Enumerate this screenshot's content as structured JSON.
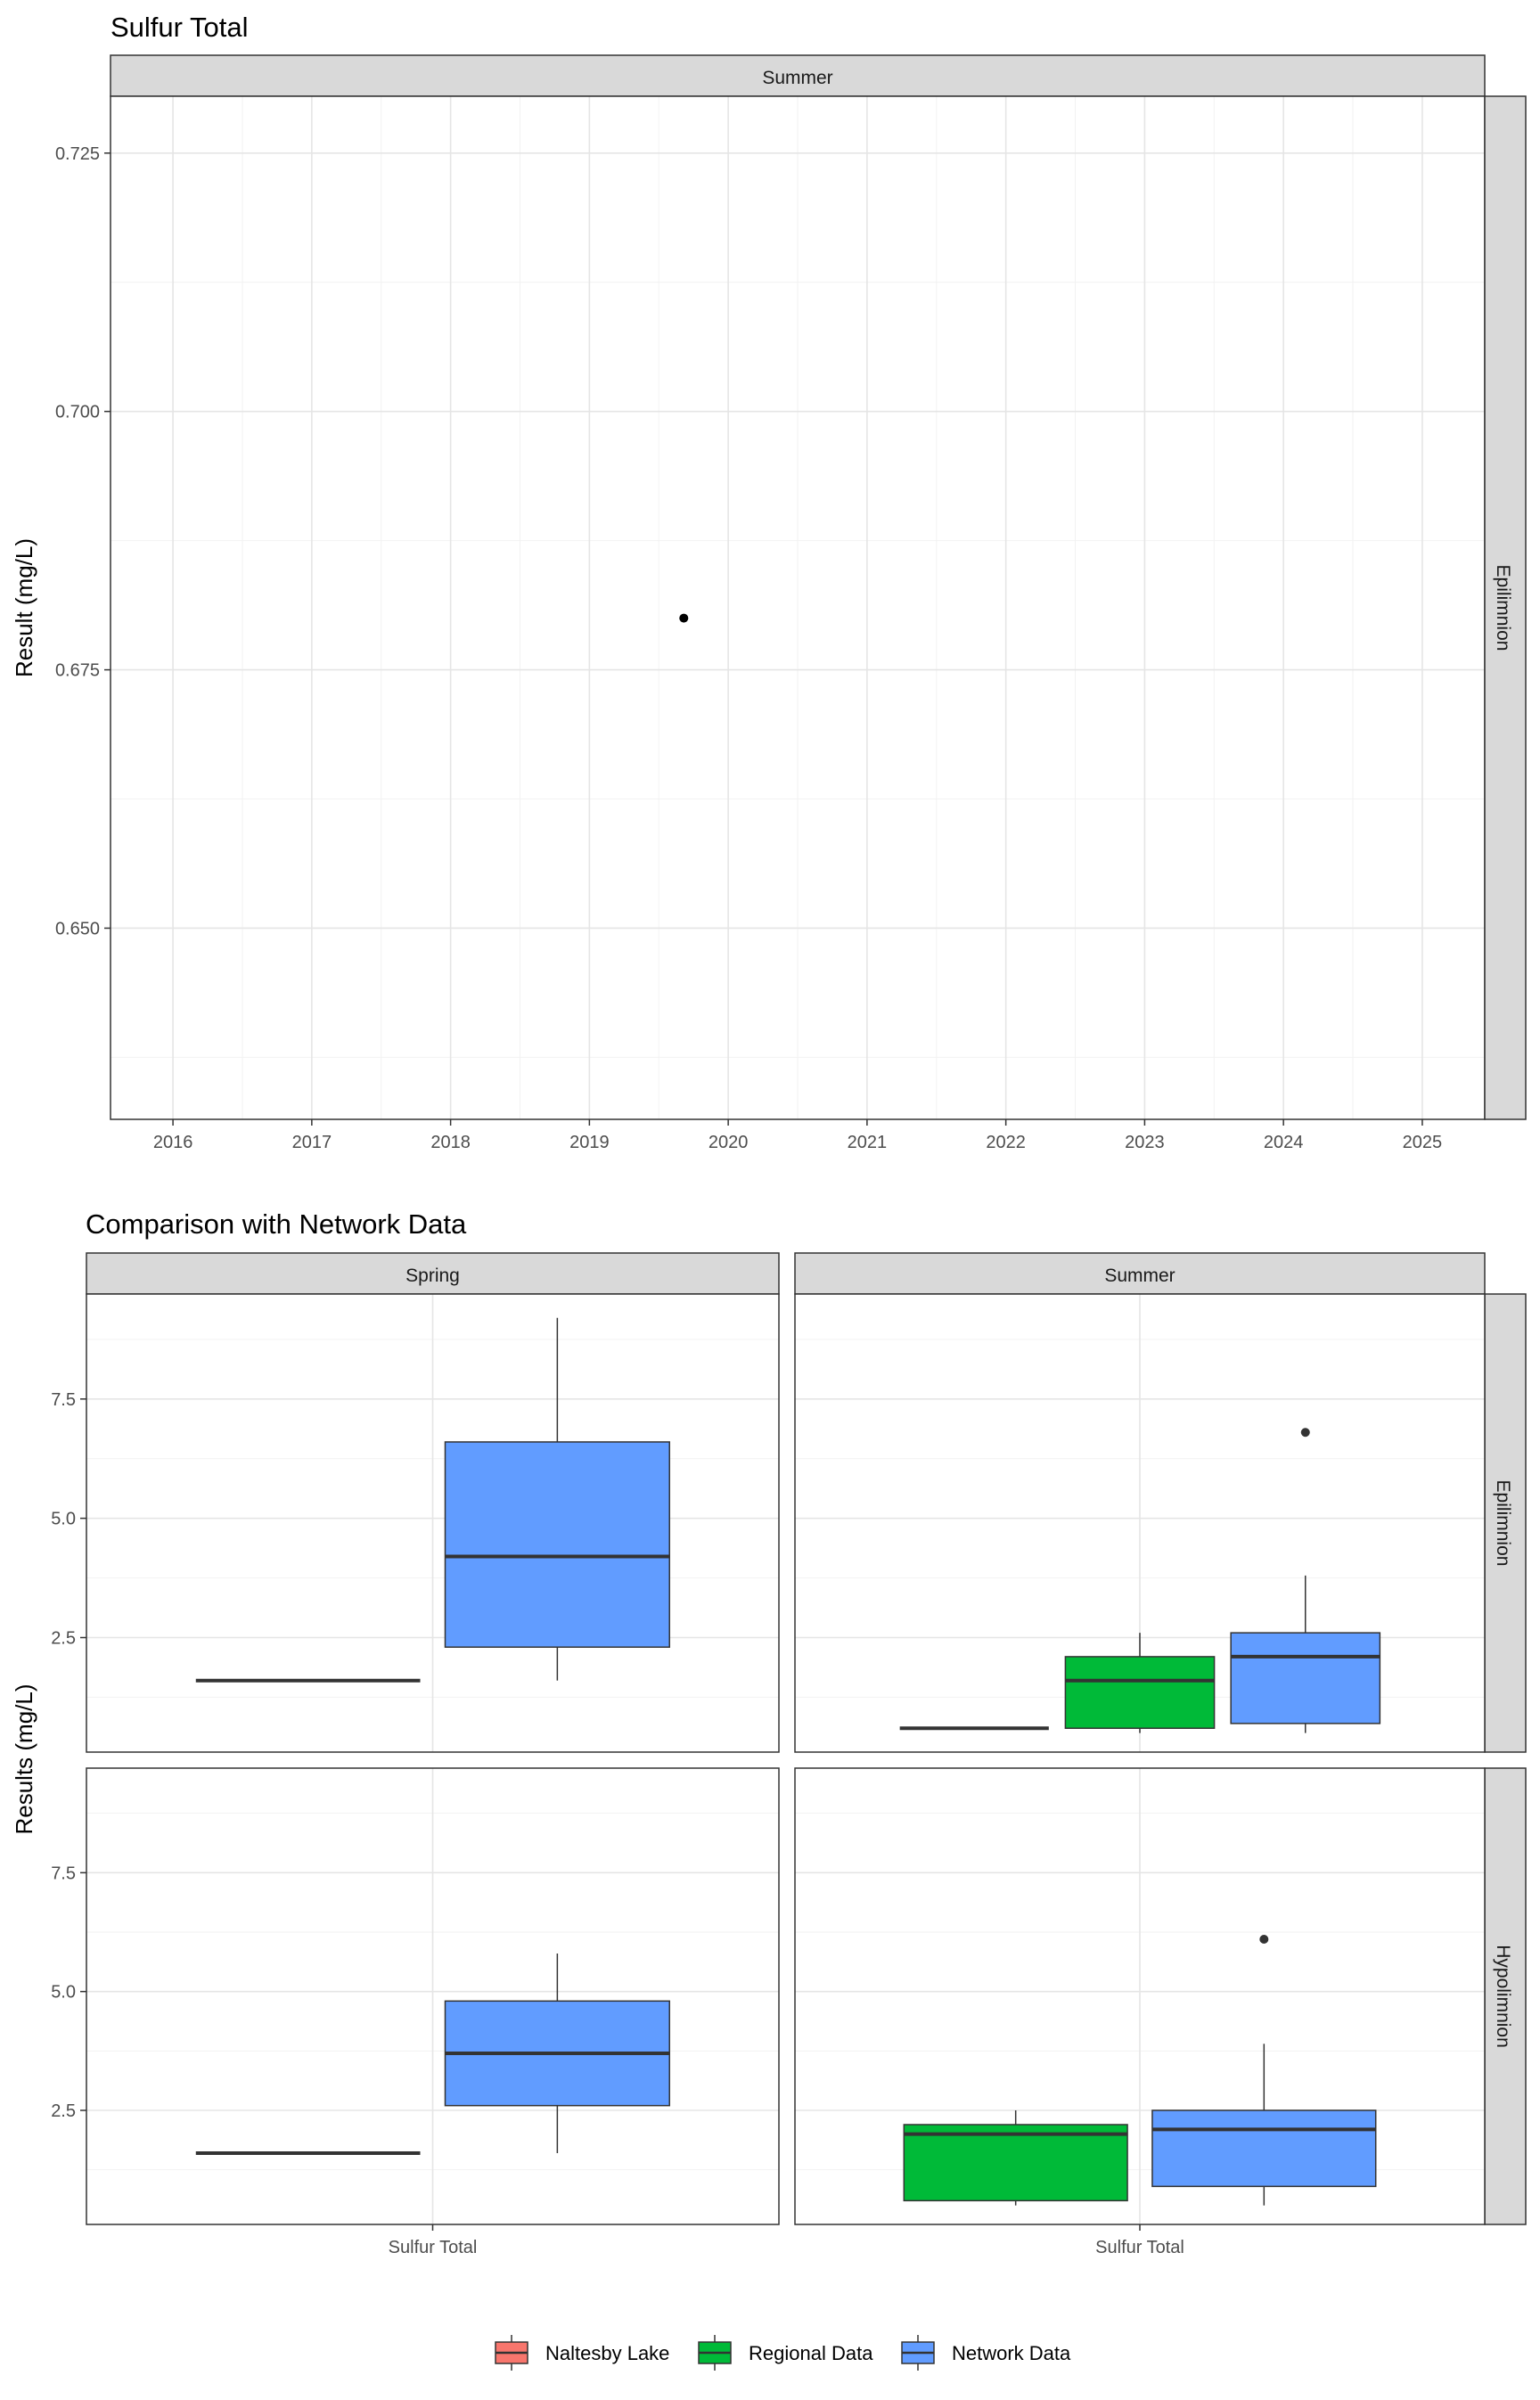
{
  "chart_data": [
    {
      "type": "scatter",
      "title": "Sulfur Total",
      "ylabel": "Result (mg/L)",
      "xlabel": "",
      "facet_col_labels": [
        "Summer"
      ],
      "facet_row_labels": [
        "Epilimnion"
      ],
      "x_ticks": [
        "2016",
        "2017",
        "2018",
        "2019",
        "2020",
        "2021",
        "2022",
        "2023",
        "2024",
        "2025"
      ],
      "y_ticks": [
        "0.650",
        "0.675",
        "0.700",
        "0.725"
      ],
      "x_range": [
        2015.55,
        2025.45
      ],
      "y_range": [
        0.6315,
        0.7305
      ],
      "points": [
        {
          "x": 2019.68,
          "y": 0.68
        }
      ],
      "grid": true
    },
    {
      "type": "box",
      "title": "Comparison with Network Data",
      "ylabel": "Results (mg/L)",
      "x_category": "Sulfur Total",
      "y_ticks": [
        "2.5",
        "5.0",
        "7.5"
      ],
      "y_range": [
        0.1,
        9.7
      ],
      "grid": true,
      "facet_col_labels": [
        "Spring",
        "Summer"
      ],
      "facet_row_labels": [
        "Epilimnion",
        "Hypolimnion"
      ],
      "legend": {
        "position": "bottom",
        "items": [
          {
            "label": "Naltesby Lake",
            "color": "#F8766D"
          },
          {
            "label": "Regional Data",
            "color": "#00BA38"
          },
          {
            "label": "Network Data",
            "color": "#619CFF"
          }
        ]
      },
      "panels": [
        {
          "season": "Spring",
          "layer": "Epilimnion",
          "boxes": [
            {
              "group": "Naltesby Lake",
              "dodge": "left",
              "min": 1.6,
              "q1": 1.6,
              "median": 1.6,
              "q3": 1.6,
              "max": 1.6,
              "outliers": []
            },
            {
              "group": "Network Data",
              "dodge": "right",
              "min": 1.6,
              "q1": 2.3,
              "median": 4.2,
              "q3": 6.6,
              "max": 9.2,
              "outliers": []
            }
          ]
        },
        {
          "season": "Summer",
          "layer": "Epilimnion",
          "boxes": [
            {
              "group": "Naltesby Lake",
              "dodge": "left",
              "min": 0.6,
              "q1": 0.6,
              "median": 0.6,
              "q3": 0.6,
              "max": 0.6,
              "outliers": []
            },
            {
              "group": "Regional Data",
              "dodge": "middle",
              "min": 0.5,
              "q1": 0.6,
              "median": 1.6,
              "q3": 2.1,
              "max": 2.6,
              "outliers": []
            },
            {
              "group": "Network Data",
              "dodge": "right",
              "min": 0.5,
              "q1": 0.7,
              "median": 2.1,
              "q3": 2.6,
              "max": 3.8,
              "outliers": [
                6.8
              ]
            }
          ]
        },
        {
          "season": "Spring",
          "layer": "Hypolimnion",
          "boxes": [
            {
              "group": "Naltesby Lake",
              "dodge": "left",
              "min": 1.6,
              "q1": 1.6,
              "median": 1.6,
              "q3": 1.6,
              "max": 1.6,
              "outliers": []
            },
            {
              "group": "Network Data",
              "dodge": "right",
              "min": 1.6,
              "q1": 2.6,
              "median": 3.7,
              "q3": 4.8,
              "max": 5.8,
              "outliers": []
            }
          ]
        },
        {
          "season": "Summer",
          "layer": "Hypolimnion",
          "boxes": [
            {
              "group": "Regional Data",
              "dodge": "left",
              "min": 0.5,
              "q1": 0.6,
              "median": 2.0,
              "q3": 2.2,
              "max": 2.5,
              "outliers": []
            },
            {
              "group": "Network Data",
              "dodge": "right",
              "min": 0.5,
              "q1": 0.9,
              "median": 2.1,
              "q3": 2.5,
              "max": 3.9,
              "outliers": [
                6.1
              ]
            }
          ]
        }
      ]
    }
  ]
}
